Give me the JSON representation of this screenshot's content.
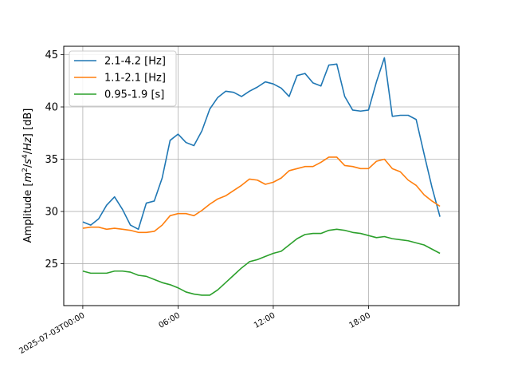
{
  "chart_data": {
    "type": "line",
    "title": "",
    "xlabel": "",
    "ylabel_parts": [
      "Amplitude [",
      "m",
      "2",
      "/",
      "s",
      "4",
      "/",
      "Hz",
      "] [dB]"
    ],
    "ylim": [
      21.0,
      45.8
    ],
    "xlim_hours": [
      -1.2,
      23.7
    ],
    "grid": true,
    "legend_position": "upper-left",
    "x_ticks": [
      {
        "hour": 0,
        "label": "2025-07-03T00:00"
      },
      {
        "hour": 6,
        "label": "06:00"
      },
      {
        "hour": 12,
        "label": "12:00"
      },
      {
        "hour": 18,
        "label": "18:00"
      }
    ],
    "y_ticks": [
      25,
      30,
      35,
      40,
      45
    ],
    "x_hours": [
      0,
      0.5,
      1,
      1.5,
      2,
      2.5,
      3,
      3.5,
      4,
      4.5,
      5,
      5.5,
      6,
      6.5,
      7,
      7.5,
      8,
      8.5,
      9,
      9.5,
      10,
      10.5,
      11,
      11.5,
      12,
      12.5,
      13,
      13.5,
      14,
      14.5,
      15,
      15.5,
      16,
      16.5,
      17,
      17.5,
      18,
      18.5,
      19,
      19.5,
      20,
      20.5,
      21,
      21.5,
      22,
      22.5
    ],
    "series": [
      {
        "name": "2.1-4.2 [Hz]",
        "color": "#1f77b4",
        "values": [
          29.0,
          28.7,
          29.3,
          30.6,
          31.4,
          30.2,
          28.7,
          28.3,
          30.8,
          31.0,
          33.2,
          36.8,
          37.4,
          36.6,
          36.3,
          37.7,
          39.8,
          40.9,
          41.5,
          41.4,
          41.0,
          41.5,
          41.9,
          42.4,
          42.2,
          41.8,
          41.0,
          43.0,
          43.2,
          42.3,
          42.0,
          44.0,
          44.1,
          41.0,
          39.7,
          39.6,
          39.7,
          42.4,
          44.7,
          39.1,
          39.2,
          39.2,
          38.8,
          35.5,
          32.3,
          29.5
        ]
      },
      {
        "name": "1.1-2.1 [Hz]",
        "color": "#ff7f0e",
        "values": [
          28.4,
          28.5,
          28.5,
          28.3,
          28.4,
          28.3,
          28.2,
          28.0,
          28.0,
          28.1,
          28.7,
          29.6,
          29.8,
          29.8,
          29.6,
          30.1,
          30.7,
          31.2,
          31.5,
          32.0,
          32.5,
          33.1,
          33.0,
          32.6,
          32.8,
          33.2,
          33.9,
          34.1,
          34.3,
          34.3,
          34.7,
          35.2,
          35.2,
          34.4,
          34.3,
          34.1,
          34.1,
          34.8,
          35.0,
          34.1,
          33.8,
          33.0,
          32.5,
          31.6,
          31.0,
          30.5
        ]
      },
      {
        "name": "0.95-1.9 [s]",
        "color": "#2ca02c",
        "values": [
          24.3,
          24.1,
          24.1,
          24.1,
          24.3,
          24.3,
          24.2,
          23.9,
          23.8,
          23.5,
          23.2,
          23.0,
          22.7,
          22.3,
          22.1,
          22.0,
          22.0,
          22.5,
          23.2,
          23.9,
          24.6,
          25.2,
          25.4,
          25.7,
          26.0,
          26.2,
          26.8,
          27.4,
          27.8,
          27.9,
          27.9,
          28.2,
          28.3,
          28.2,
          28.0,
          27.9,
          27.7,
          27.5,
          27.6,
          27.4,
          27.3,
          27.2,
          27.0,
          26.8,
          26.4,
          26.0
        ]
      }
    ]
  }
}
